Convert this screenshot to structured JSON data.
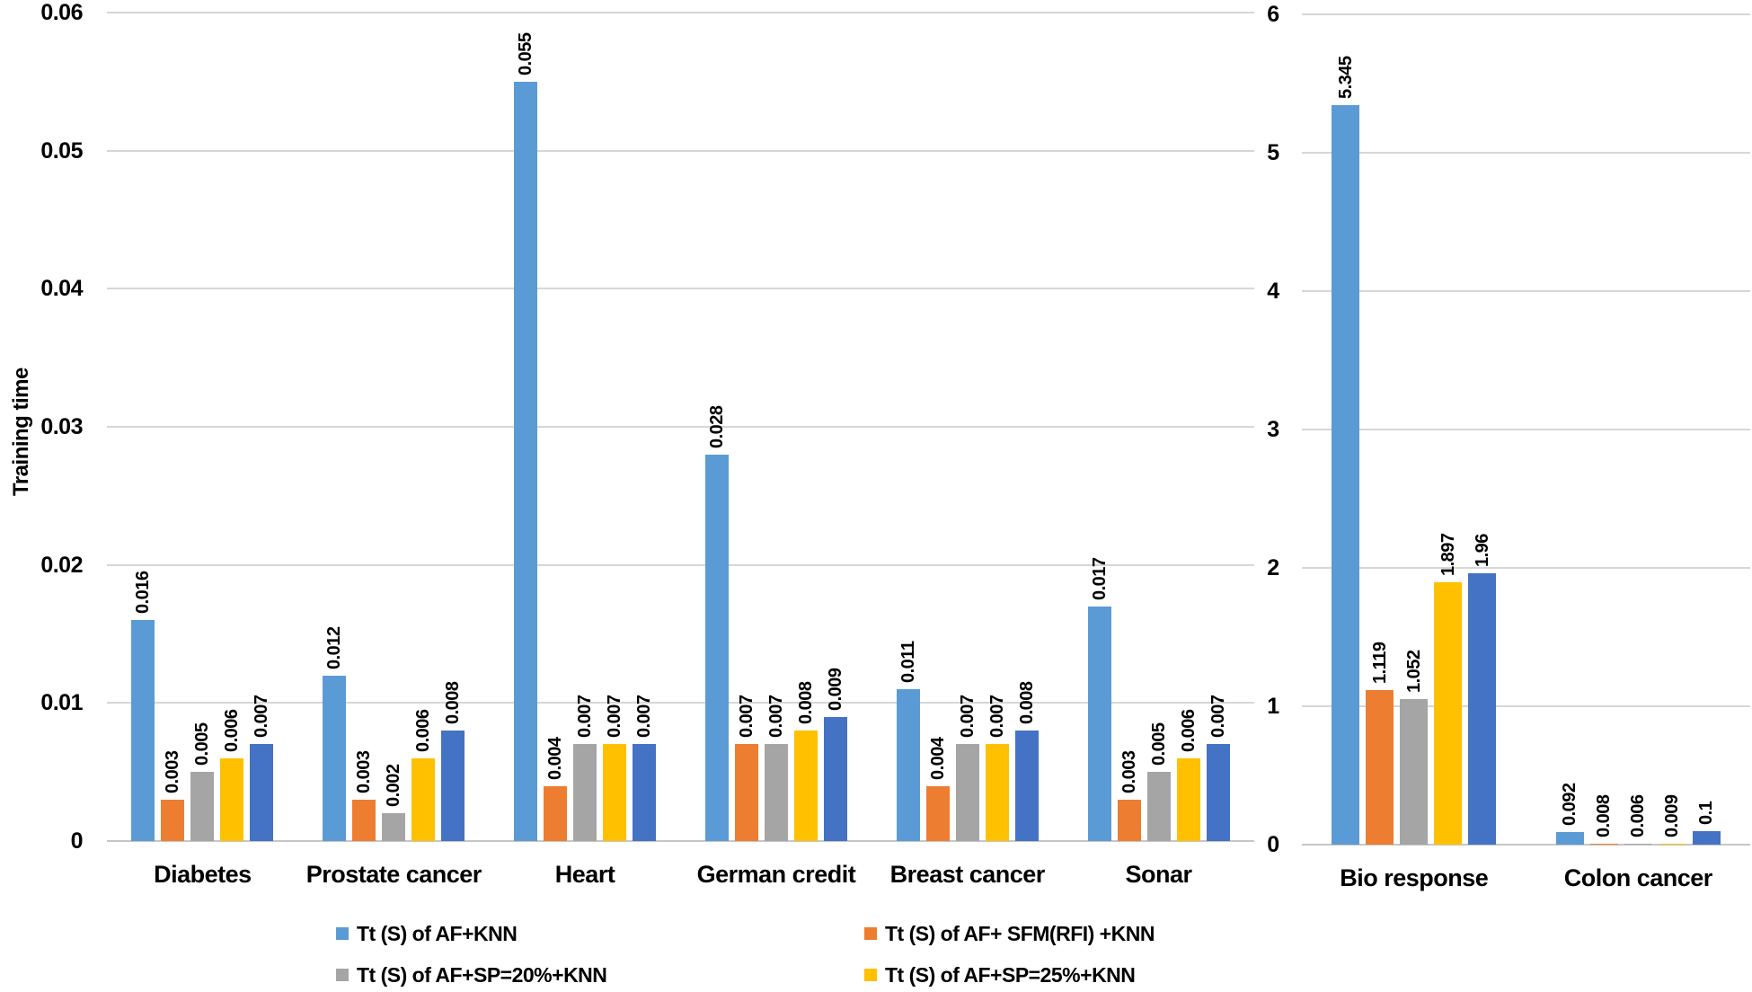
{
  "y_axis_title": "Training time",
  "colors": {
    "background": "#FFFFFF",
    "text": "#000000",
    "gridline": "#D6D6D6",
    "axis_line": "#C6C6C6",
    "series": [
      "#5B9BD5",
      "#ED7D31",
      "#A5A5A5",
      "#FFC000",
      "#4472C4"
    ]
  },
  "legend": [
    {
      "label": "Tt (S) of AF+KNN",
      "color": "#5B9BD5"
    },
    {
      "label": "Tt (S) of AF+ SFM(RFI) +KNN",
      "color": "#ED7D31"
    },
    {
      "label": "Tt (S) of AF+SP=20%+KNN",
      "color": "#A5A5A5"
    },
    {
      "label": "Tt (S) of AF+SP=25%+KNN",
      "color": "#FFC000"
    }
  ],
  "chart_data": [
    {
      "type": "bar",
      "title": "",
      "xlabel": "",
      "ylabel": "Training time",
      "ylim": [
        0,
        0.06
      ],
      "yticks": [
        "0.06",
        "0.05",
        "0.04",
        "0.03",
        "0.02",
        "0.01",
        "0"
      ],
      "grid": true,
      "legend_position": "bottom",
      "categories": [
        "Diabetes",
        "Prostate cancer",
        "Heart",
        "German credit",
        "Breast cancer",
        "Sonar"
      ],
      "series": [
        {
          "name": "Tt (S) of AF+KNN",
          "color": "#5B9BD5",
          "values": [
            0.016,
            0.012,
            0.055,
            0.028,
            0.011,
            0.017
          ],
          "labels": [
            "0.016",
            "0.012",
            "0.055",
            "0.028",
            "0.011",
            "0.017"
          ]
        },
        {
          "name": "Tt (S) of AF+ SFM(RFI) +KNN",
          "color": "#ED7D31",
          "values": [
            0.003,
            0.003,
            0.004,
            0.007,
            0.004,
            0.003
          ],
          "labels": [
            "0.003",
            "0.003",
            "0.004",
            "0.007",
            "0.004",
            "0.003"
          ]
        },
        {
          "name": "Tt (S) of AF+SP=20%+KNN",
          "color": "#A5A5A5",
          "values": [
            0.005,
            0.002,
            0.007,
            0.007,
            0.007,
            0.005
          ],
          "labels": [
            "0.005",
            "0.002",
            "0.007",
            "0.007",
            "0.007",
            "0.005"
          ]
        },
        {
          "name": "Tt (S) of AF+SP=25%+KNN",
          "color": "#FFC000",
          "values": [
            0.006,
            0.006,
            0.007,
            0.008,
            0.007,
            0.006
          ],
          "labels": [
            "0.006",
            "0.006",
            "0.007",
            "0.008",
            "0.007",
            "0.006"
          ]
        },
        {
          "name": "",
          "color": "#4472C4",
          "values": [
            0.007,
            0.008,
            0.007,
            0.009,
            0.008,
            0.007
          ],
          "labels": [
            "0.007",
            "0.008",
            "0.007",
            "0.009",
            "0.008",
            "0.007"
          ]
        }
      ]
    },
    {
      "type": "bar",
      "title": "",
      "xlabel": "",
      "ylabel": "",
      "ylim": [
        0,
        6
      ],
      "yticks": [
        "6",
        "5",
        "4",
        "3",
        "2",
        "1",
        "0"
      ],
      "grid": true,
      "legend_position": "bottom",
      "categories": [
        "Bio response",
        "Colon cancer"
      ],
      "series": [
        {
          "name": "Tt (S) of AF+KNN",
          "color": "#5B9BD5",
          "values": [
            5.345,
            0.092
          ],
          "labels": [
            "5.345",
            "0.092"
          ]
        },
        {
          "name": "Tt (S) of AF+ SFM(RFI) +KNN",
          "color": "#ED7D31",
          "values": [
            1.119,
            0.008
          ],
          "labels": [
            "1.119",
            "0.008"
          ]
        },
        {
          "name": "Tt (S) of AF+SP=20%+KNN",
          "color": "#A5A5A5",
          "values": [
            1.052,
            0.006
          ],
          "labels": [
            "1.052",
            "0.006"
          ]
        },
        {
          "name": "Tt (S) of AF+SP=25%+KNN",
          "color": "#FFC000",
          "values": [
            1.897,
            0.009
          ],
          "labels": [
            "1.897",
            "0.009"
          ]
        },
        {
          "name": "",
          "color": "#4472C4",
          "values": [
            1.96,
            0.1
          ],
          "labels": [
            "1.96",
            "0.1"
          ]
        }
      ]
    }
  ]
}
